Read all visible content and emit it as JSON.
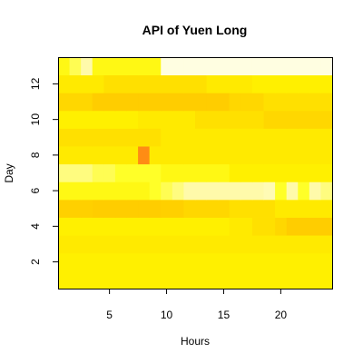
{
  "chart_data": {
    "type": "heatmap",
    "title": "API of Yuen Long",
    "xlabel": "Hours",
    "ylabel": "Day",
    "x": [
      1,
      2,
      3,
      4,
      5,
      6,
      7,
      8,
      9,
      10,
      11,
      12,
      13,
      14,
      15,
      16,
      17,
      18,
      19,
      20,
      21,
      22,
      23,
      24
    ],
    "y": [
      1,
      2,
      3,
      4,
      5,
      6,
      7,
      8,
      9,
      10,
      11,
      12,
      13
    ],
    "xlim": [
      0.5,
      24.5
    ],
    "ylim": [
      0.5,
      13.5
    ],
    "xticks": [
      5,
      10,
      15,
      20
    ],
    "yticks": [
      2,
      4,
      6,
      8,
      10,
      12
    ],
    "colorscale": "heat (red-orange-yellow-white); higher value = darker",
    "values": [
      [
        0.55,
        0.55,
        0.55,
        0.55,
        0.55,
        0.55,
        0.55,
        0.55,
        0.55,
        0.55,
        0.55,
        0.55,
        0.55,
        0.55,
        0.55,
        0.55,
        0.55,
        0.55,
        0.55,
        0.55,
        0.55,
        0.55,
        0.55,
        0.55
      ],
      [
        0.55,
        0.55,
        0.55,
        0.55,
        0.55,
        0.55,
        0.55,
        0.55,
        0.55,
        0.55,
        0.55,
        0.55,
        0.55,
        0.55,
        0.55,
        0.55,
        0.55,
        0.55,
        0.55,
        0.55,
        0.55,
        0.55,
        0.55,
        0.55
      ],
      [
        0.57,
        0.57,
        0.57,
        0.57,
        0.57,
        0.57,
        0.57,
        0.57,
        0.57,
        0.57,
        0.57,
        0.57,
        0.57,
        0.57,
        0.57,
        0.57,
        0.57,
        0.57,
        0.57,
        0.57,
        0.57,
        0.57,
        0.57,
        0.57
      ],
      [
        0.55,
        0.55,
        0.55,
        0.55,
        0.55,
        0.55,
        0.55,
        0.55,
        0.55,
        0.55,
        0.55,
        0.55,
        0.55,
        0.55,
        0.55,
        0.57,
        0.57,
        0.6,
        0.6,
        0.63,
        0.66,
        0.66,
        0.66,
        0.66
      ],
      [
        0.65,
        0.65,
        0.65,
        0.66,
        0.66,
        0.66,
        0.66,
        0.66,
        0.66,
        0.65,
        0.65,
        0.63,
        0.63,
        0.63,
        0.63,
        0.6,
        0.6,
        0.6,
        0.6,
        0.57,
        0.57,
        0.57,
        0.57,
        0.57
      ],
      [
        0.5,
        0.5,
        0.5,
        0.5,
        0.5,
        0.5,
        0.5,
        0.5,
        0.45,
        0.4,
        0.35,
        0.3,
        0.3,
        0.3,
        0.3,
        0.3,
        0.3,
        0.3,
        0.25,
        0.45,
        0.3,
        0.45,
        0.3,
        0.35
      ],
      [
        0.35,
        0.35,
        0.35,
        0.4,
        0.4,
        0.45,
        0.45,
        0.45,
        0.45,
        0.5,
        0.5,
        0.5,
        0.5,
        0.5,
        0.5,
        0.55,
        0.55,
        0.55,
        0.55,
        0.55,
        0.55,
        0.55,
        0.55,
        0.55
      ],
      [
        0.57,
        0.57,
        0.57,
        0.57,
        0.57,
        0.57,
        0.57,
        0.85,
        0.57,
        0.57,
        0.57,
        0.57,
        0.57,
        0.57,
        0.57,
        0.57,
        0.57,
        0.57,
        0.57,
        0.57,
        0.57,
        0.57,
        0.57,
        0.57
      ],
      [
        0.6,
        0.6,
        0.6,
        0.6,
        0.6,
        0.6,
        0.6,
        0.6,
        0.6,
        0.57,
        0.57,
        0.57,
        0.57,
        0.57,
        0.57,
        0.57,
        0.57,
        0.57,
        0.57,
        0.57,
        0.57,
        0.57,
        0.57,
        0.57
      ],
      [
        0.55,
        0.55,
        0.55,
        0.55,
        0.55,
        0.55,
        0.55,
        0.57,
        0.57,
        0.57,
        0.57,
        0.57,
        0.6,
        0.6,
        0.6,
        0.6,
        0.6,
        0.6,
        0.63,
        0.63,
        0.63,
        0.63,
        0.63,
        0.63
      ],
      [
        0.63,
        0.63,
        0.63,
        0.66,
        0.66,
        0.66,
        0.66,
        0.66,
        0.66,
        0.66,
        0.66,
        0.66,
        0.66,
        0.66,
        0.66,
        0.63,
        0.63,
        0.63,
        0.6,
        0.6,
        0.6,
        0.6,
        0.6,
        0.6
      ],
      [
        0.57,
        0.57,
        0.57,
        0.57,
        0.6,
        0.6,
        0.6,
        0.6,
        0.6,
        0.6,
        0.6,
        0.6,
        0.6,
        0.57,
        0.57,
        0.57,
        0.57,
        0.55,
        0.55,
        0.55,
        0.55,
        0.55,
        0.55,
        0.55
      ],
      [
        0.5,
        0.4,
        0.3,
        0.5,
        0.5,
        0.5,
        0.5,
        0.5,
        0.5,
        0.05,
        0.05,
        0.05,
        0.05,
        0.05,
        0.05,
        0.05,
        0.05,
        0.05,
        0.05,
        0.05,
        0.05,
        0.05,
        0.05,
        0.05
      ]
    ]
  }
}
